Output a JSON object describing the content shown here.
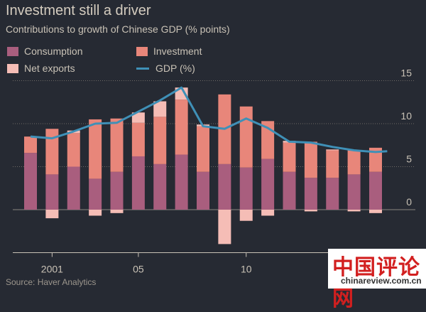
{
  "title": "Investment still a driver",
  "subtitle": "Contributions to growth of Chinese GDP (% points)",
  "source": "Source: Haver Analytics",
  "watermark": {
    "text": "中国评论网",
    "url": "chinareview.com.cn"
  },
  "colors": {
    "background": "#262a33",
    "consumption": "#a95e7e",
    "investment": "#e8867a",
    "net_exports": "#f5bdb6",
    "gdp_line": "#3f90b7",
    "grid": "#6e6a66"
  },
  "legend": [
    {
      "key": "consumption",
      "label": "Consumption",
      "kind": "swatch"
    },
    {
      "key": "investment",
      "label": "Investment",
      "kind": "swatch"
    },
    {
      "key": "net_exports",
      "label": "Net exports",
      "kind": "swatch"
    },
    {
      "key": "gdp_line",
      "label": "GDP (%)",
      "kind": "line"
    }
  ],
  "chart_data": {
    "type": "bar",
    "stacked": true,
    "x": [
      2000,
      2001,
      2002,
      2003,
      2004,
      2005,
      2006,
      2007,
      2008,
      2009,
      2010,
      2011,
      2012,
      2013,
      2014,
      2015,
      2016,
      2017
    ],
    "x_tick_values": [
      2001,
      2005,
      2010
    ],
    "x_tick_labels": [
      "2001",
      "05",
      "10"
    ],
    "y_ticks": [
      0,
      5,
      10,
      15
    ],
    "ylim": [
      -5,
      15
    ],
    "grid": true,
    "series": [
      {
        "name": "Consumption",
        "key": "consumption",
        "values": [
          6.6,
          4.1,
          5.0,
          3.6,
          4.4,
          6.2,
          5.3,
          6.4,
          4.4,
          5.3,
          4.9,
          5.9,
          4.4,
          3.7,
          3.7,
          4.1,
          4.4,
          0
        ]
      },
      {
        "name": "Investment",
        "key": "investment",
        "values": [
          1.9,
          5.3,
          3.9,
          6.9,
          6.2,
          3.9,
          5.5,
          6.4,
          5.3,
          8.1,
          7.1,
          4.4,
          3.4,
          4.2,
          3.2,
          2.8,
          2.8,
          0
        ]
      },
      {
        "name": "Net exports",
        "key": "net_exports",
        "values": [
          0,
          -1.0,
          0.3,
          -0.7,
          -0.4,
          1.2,
          1.8,
          1.4,
          0.2,
          -4.0,
          -1.3,
          -0.7,
          0.2,
          -0.2,
          0.1,
          -0.2,
          -0.4,
          0
        ]
      }
    ],
    "gdp": {
      "name": "GDP (%)",
      "key": "gdp_line",
      "values": [
        8.5,
        8.3,
        9.1,
        10.0,
        10.1,
        11.4,
        12.7,
        14.2,
        9.7,
        9.4,
        10.6,
        9.5,
        7.9,
        7.8,
        7.3,
        6.9,
        6.7,
        6.8
      ]
    }
  }
}
